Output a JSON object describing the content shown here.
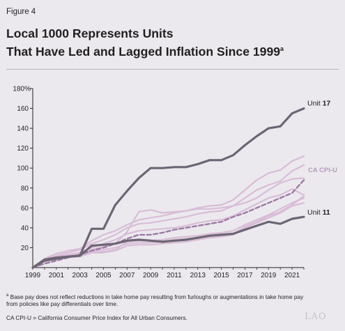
{
  "figure_label": "Figure 4",
  "title_line1": "Local 1000 Represents Units",
  "title_line2": "That Have Led and Lagged Inflation Since 1999",
  "title_sup": "a",
  "footnote_sup": "a",
  "footnote_text": "Base pay does not reflect reductions in take home pay resulting from furloughs or augmentations in take home pay from policies like pay differentials over time.",
  "source_text": "CA CPI-U = California Consumer Price Index for All Urban Consumers.",
  "logo_text": "LAO",
  "colors": {
    "highlight": "#6c6574",
    "other_units": "#d9bcd7",
    "cpi": "#9c7aa3",
    "axis": "#231f20",
    "cpi_label": "#b79bbd"
  },
  "chart_data": {
    "type": "line",
    "ylim": [
      0,
      180
    ],
    "xlim": [
      1999,
      2022
    ],
    "y_ticks": [
      20,
      40,
      60,
      80,
      100,
      120,
      140,
      160
    ],
    "y_top_label": "180%",
    "x_tick_labels": [
      "1999",
      "2001",
      "2003",
      "2005",
      "2007",
      "2009",
      "2011",
      "2013",
      "2015",
      "2017",
      "2019",
      "2021"
    ],
    "x_ticks": [
      1999,
      2001,
      2003,
      2005,
      2007,
      2009,
      2011,
      2013,
      2015,
      2017,
      2019,
      2021
    ],
    "x": [
      1999,
      2000,
      2001,
      2002,
      2003,
      2004,
      2005,
      2006,
      2007,
      2008,
      2009,
      2010,
      2011,
      2012,
      2013,
      2014,
      2015,
      2016,
      2017,
      2018,
      2019,
      2020,
      2021,
      2022
    ],
    "series": [
      {
        "key": "unit17",
        "name": "Unit 17",
        "label_prefix": "Unit ",
        "label_bold": "17",
        "role": "highlight",
        "values": [
          0,
          8,
          10,
          11,
          12,
          39,
          39,
          63,
          77,
          90,
          100,
          100,
          101,
          101,
          104,
          108,
          108,
          113,
          123,
          132,
          140,
          142,
          155,
          160
        ]
      },
      {
        "key": "unit11",
        "name": "Unit 11",
        "label_prefix": "Unit ",
        "label_bold": "11",
        "role": "highlight",
        "values": [
          0,
          7,
          9,
          11,
          12,
          22,
          23,
          24,
          27,
          28,
          27,
          26,
          27,
          28,
          30,
          32,
          33,
          34,
          38,
          42,
          46,
          44,
          49,
          51
        ]
      },
      {
        "key": "cpi",
        "name": "CA CPI-U",
        "role": "cpi",
        "values": [
          0,
          4,
          7,
          10,
          13,
          17,
          20,
          24,
          29,
          33,
          33,
          35,
          38,
          40,
          42,
          44,
          46,
          51,
          55,
          60,
          65,
          70,
          75,
          88
        ]
      },
      {
        "key": "g1",
        "role": "other",
        "values": [
          0,
          9,
          14,
          17,
          19,
          27,
          33,
          37,
          43,
          48,
          50,
          52,
          55,
          57,
          60,
          62,
          63,
          68,
          78,
          88,
          95,
          98,
          107,
          112
        ]
      },
      {
        "key": "g2",
        "role": "other",
        "values": [
          0,
          8,
          12,
          15,
          18,
          24,
          28,
          33,
          40,
          44,
          45,
          47,
          49,
          51,
          54,
          56,
          57,
          62,
          70,
          78,
          83,
          87,
          97,
          103
        ]
      },
      {
        "key": "g3",
        "role": "other",
        "values": [
          0,
          6,
          9,
          11,
          12,
          18,
          21,
          24,
          36,
          56,
          58,
          55,
          56,
          57,
          59,
          59,
          60,
          62,
          65,
          70,
          78,
          85,
          89,
          90
        ]
      },
      {
        "key": "g4",
        "role": "other",
        "values": [
          0,
          7,
          11,
          13,
          15,
          20,
          24,
          28,
          34,
          37,
          38,
          39,
          40,
          42,
          45,
          47,
          48,
          52,
          58,
          64,
          70,
          73,
          79,
          73
        ]
      },
      {
        "key": "g5",
        "role": "other",
        "values": [
          0,
          7,
          9,
          11,
          12,
          16,
          16,
          18,
          26,
          27,
          27,
          28,
          30,
          31,
          32,
          34,
          35,
          37,
          43,
          48,
          53,
          59,
          65,
          70
        ]
      },
      {
        "key": "g6",
        "role": "other",
        "values": [
          0,
          6,
          8,
          10,
          11,
          15,
          15,
          17,
          22,
          23,
          23,
          24,
          25,
          26,
          28,
          30,
          31,
          33,
          40,
          45,
          50,
          55,
          62,
          65
        ]
      },
      {
        "key": "g7",
        "role": "other",
        "values": [
          0,
          7,
          10,
          12,
          13,
          17,
          18,
          20,
          24,
          25,
          25,
          26,
          28,
          29,
          30,
          32,
          32,
          34,
          41,
          46,
          52,
          56,
          63,
          72
        ]
      }
    ]
  }
}
